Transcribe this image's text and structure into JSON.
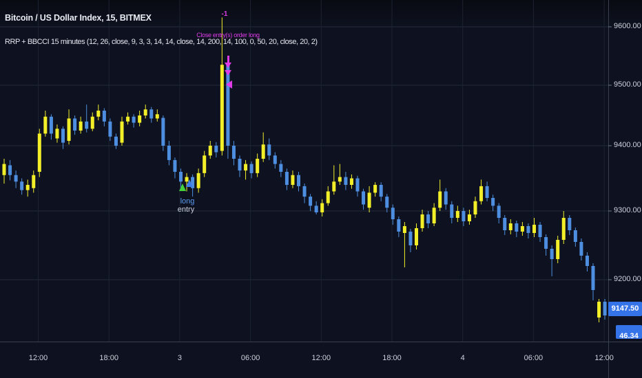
{
  "header": {
    "symbol_title": "Bitcoin / US Dollar Index, 15, BITMEX",
    "indicator_title": "RRP + BBCCI 15 minutes (12, 26, close, 9, 3, 3, 14, 14, close, 14, 200, 14, 100, 0, 50, 20, close, 20, 2)"
  },
  "annotations": {
    "close_count_label": "-1",
    "close_label": "Close entry(s) order long",
    "entry_label_line1": "long",
    "entry_label_line2": "entry",
    "markers": [
      {
        "type": "close-order-arrow",
        "icon": "down-arrow-icon",
        "color": "#df3be8",
        "near_price": 9545
      },
      {
        "type": "close-order-arrowhead",
        "icon": "down-arrowhead-icon",
        "color": "#df3be8",
        "near_price": 9525
      },
      {
        "type": "close-order-pointer",
        "icon": "left-triangle-icon",
        "color": "#df3be8",
        "near_price": 9505
      },
      {
        "type": "long-entry",
        "icon": "up-triangle-icon",
        "color": "#45d13c",
        "near_price": 9340
      },
      {
        "type": "long-entry",
        "icon": "up-triangle-icon",
        "color": "#3f7de8",
        "near_price": 9345
      }
    ]
  },
  "colors": {
    "background": "#0e1220",
    "grid_horizontal": "#232b3d",
    "grid_vertical": "#1c2330",
    "axis_border": "#394150",
    "up_candle": "#f2ee28",
    "down_candle": "#4e8ee0",
    "axis_text": "#ced2dc",
    "price_badge": "#3573e8",
    "magenta": "#df3be8",
    "entry_green": "#45d13c",
    "entry_blue": "#3f7de8"
  },
  "chart_data": {
    "type": "candlestick",
    "symbol": "Bitcoin / US Dollar Index",
    "interval": "15",
    "exchange": "BITMEX",
    "y_axis": {
      "ticks": [
        "9600.00",
        "9500.00",
        "9400.00",
        "9300.00",
        "9200.00"
      ],
      "tick_prices": [
        9600,
        9500,
        9400,
        9300,
        9200
      ],
      "last_price": "9147.50",
      "secondary_value": "46.34"
    },
    "x_axis": {
      "ticks": [
        "12:00",
        "18:00",
        "3",
        "06:00",
        "12:00",
        "18:00",
        "4",
        "06:00",
        "12:00"
      ]
    },
    "candles": [
      [
        9355,
        9380,
        9342,
        9372
      ],
      [
        9370,
        9378,
        9347,
        9355
      ],
      [
        9355,
        9362,
        9335,
        9345
      ],
      [
        9345,
        9350,
        9325,
        9332
      ],
      [
        9332,
        9348,
        9322,
        9340
      ],
      [
        9335,
        9362,
        9328,
        9355
      ],
      [
        9360,
        9428,
        9352,
        9420
      ],
      [
        9420,
        9458,
        9415,
        9448
      ],
      [
        9448,
        9452,
        9410,
        9420
      ],
      [
        9412,
        9435,
        9405,
        9428
      ],
      [
        9428,
        9432,
        9395,
        9405
      ],
      [
        9408,
        9460,
        9402,
        9445
      ],
      [
        9445,
        9450,
        9418,
        9425
      ],
      [
        9425,
        9448,
        9420,
        9440
      ],
      [
        9440,
        9468,
        9422,
        9428
      ],
      [
        9428,
        9455,
        9424,
        9448
      ],
      [
        9448,
        9468,
        9442,
        9458
      ],
      [
        9458,
        9462,
        9432,
        9440
      ],
      [
        9440,
        9445,
        9408,
        9415
      ],
      [
        9415,
        9420,
        9395,
        9400
      ],
      [
        9405,
        9448,
        9400,
        9440
      ],
      [
        9440,
        9455,
        9435,
        9448
      ],
      [
        9448,
        9452,
        9430,
        9438
      ],
      [
        9438,
        9458,
        9432,
        9450
      ],
      [
        9450,
        9468,
        9445,
        9460
      ],
      [
        9460,
        9464,
        9438,
        9445
      ],
      [
        9445,
        9460,
        9440,
        9452
      ],
      [
        9446,
        9450,
        9392,
        9400
      ],
      [
        9400,
        9408,
        9370,
        9378
      ],
      [
        9378,
        9382,
        9350,
        9360
      ],
      [
        9360,
        9365,
        9335,
        9345
      ],
      [
        9345,
        9358,
        9330,
        9352
      ],
      [
        9352,
        9356,
        9322,
        9335
      ],
      [
        9335,
        9365,
        9328,
        9358
      ],
      [
        9358,
        9392,
        9352,
        9385
      ],
      [
        9385,
        9408,
        9380,
        9400
      ],
      [
        9400,
        9406,
        9382,
        9390
      ],
      [
        9392,
        9616,
        9385,
        9535
      ],
      [
        9535,
        9540,
        9380,
        9400
      ],
      [
        9400,
        9408,
        9370,
        9380
      ],
      [
        9380,
        9385,
        9352,
        9362
      ],
      [
        9362,
        9378,
        9348,
        9372
      ],
      [
        9372,
        9376,
        9350,
        9358
      ],
      [
        9358,
        9388,
        9352,
        9380
      ],
      [
        9380,
        9422,
        9375,
        9402
      ],
      [
        9402,
        9412,
        9378,
        9385
      ],
      [
        9385,
        9390,
        9365,
        9372
      ],
      [
        9372,
        9378,
        9352,
        9360
      ],
      [
        9360,
        9365,
        9332,
        9340
      ],
      [
        9340,
        9362,
        9335,
        9355
      ],
      [
        9355,
        9360,
        9330,
        9338
      ],
      [
        9338,
        9342,
        9312,
        9322
      ],
      [
        9322,
        9326,
        9300,
        9308
      ],
      [
        9308,
        9315,
        9295,
        9298
      ],
      [
        9298,
        9318,
        9292,
        9312
      ],
      [
        9312,
        9338,
        9308,
        9330
      ],
      [
        9330,
        9370,
        9325,
        9345
      ],
      [
        9345,
        9372,
        9340,
        9352
      ],
      [
        9352,
        9360,
        9332,
        9340
      ],
      [
        9340,
        9356,
        9334,
        9350
      ],
      [
        9350,
        9354,
        9322,
        9330
      ],
      [
        9330,
        9334,
        9302,
        9310
      ],
      [
        9305,
        9338,
        9298,
        9328
      ],
      [
        9328,
        9344,
        9322,
        9340
      ],
      [
        9340,
        9344,
        9315,
        9322
      ],
      [
        9322,
        9326,
        9298,
        9305
      ],
      [
        9305,
        9310,
        9280,
        9288
      ],
      [
        9288,
        9292,
        9262,
        9270
      ],
      [
        9268,
        9284,
        9218,
        9278
      ],
      [
        9270,
        9274,
        9240,
        9250
      ],
      [
        9250,
        9282,
        9244,
        9275
      ],
      [
        9275,
        9302,
        9270,
        9295
      ],
      [
        9295,
        9300,
        9275,
        9282
      ],
      [
        9282,
        9312,
        9278,
        9305
      ],
      [
        9305,
        9348,
        9300,
        9330
      ],
      [
        9330,
        9335,
        9302,
        9310
      ],
      [
        9310,
        9315,
        9282,
        9290
      ],
      [
        9290,
        9308,
        9284,
        9300
      ],
      [
        9300,
        9305,
        9278,
        9285
      ],
      [
        9285,
        9302,
        9280,
        9295
      ],
      [
        9295,
        9322,
        9290,
        9315
      ],
      [
        9315,
        9348,
        9310,
        9338
      ],
      [
        9338,
        9345,
        9315,
        9320
      ],
      [
        9320,
        9325,
        9300,
        9308
      ],
      [
        9308,
        9312,
        9282,
        9290
      ],
      [
        9290,
        9294,
        9265,
        9272
      ],
      [
        9272,
        9288,
        9266,
        9282
      ],
      [
        9282,
        9286,
        9262,
        9270
      ],
      [
        9270,
        9284,
        9264,
        9278
      ],
      [
        9278,
        9282,
        9260,
        9268
      ],
      [
        9268,
        9290,
        9262,
        9280
      ],
      [
        9280,
        9284,
        9255,
        9262
      ],
      [
        9262,
        9266,
        9235,
        9245
      ],
      [
        9245,
        9250,
        9205,
        9230
      ],
      [
        9230,
        9264,
        9224,
        9258
      ],
      [
        9258,
        9300,
        9252,
        9290
      ],
      [
        9290,
        9294,
        9265,
        9272
      ],
      [
        9272,
        9276,
        9248,
        9255
      ],
      [
        9255,
        9260,
        9228,
        9235
      ],
      [
        9235,
        9240,
        9212,
        9220
      ],
      [
        9220,
        9224,
        9170,
        9185
      ],
      [
        9145,
        9172,
        9138,
        9168
      ],
      [
        9168,
        9172,
        9142,
        9148
      ]
    ]
  }
}
